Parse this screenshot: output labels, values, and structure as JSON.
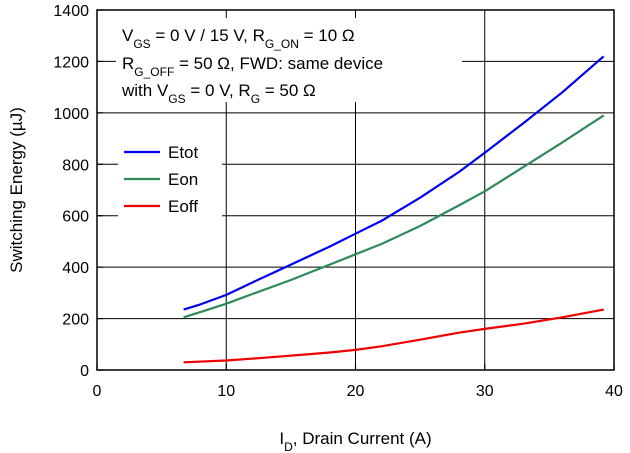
{
  "chart_data": {
    "type": "line",
    "title": "",
    "xlabel_main": "I",
    "xlabel_sub": "D",
    "xlabel_rest": ", Drain Current (A)",
    "ylabel": "Switching Energy (µJ)",
    "xlim": [
      0,
      40
    ],
    "ylim": [
      0,
      1400
    ],
    "xticks": [
      0,
      10,
      20,
      30,
      40
    ],
    "yticks": [
      0,
      200,
      400,
      600,
      800,
      1000,
      1200,
      1400
    ],
    "grid": true,
    "legend_position": "middle-left",
    "annotation": {
      "line1": [
        {
          "t": "V"
        },
        {
          "t": "GS",
          "sub": true
        },
        {
          "t": " = 0 V / 15 V, R"
        },
        {
          "t": "G_ON",
          "sub": true
        },
        {
          "t": " = 10 Ω"
        }
      ],
      "line2": [
        {
          "t": "R"
        },
        {
          "t": "G_OFF",
          "sub": true
        },
        {
          "t": " = 50 Ω, FWD: same device"
        }
      ],
      "line3": [
        {
          "t": "with V"
        },
        {
          "t": "GS",
          "sub": true
        },
        {
          "t": " = 0 V, R"
        },
        {
          "t": "G",
          "sub": true
        },
        {
          "t": " = 50 Ω"
        }
      ]
    },
    "series": [
      {
        "name": "Etot",
        "color": "#0000ee",
        "x": [
          6.7,
          8,
          10,
          12,
          15,
          18,
          20,
          22,
          25,
          28,
          30,
          33,
          36,
          39.2
        ],
        "y": [
          235,
          255,
          292,
          340,
          410,
          480,
          530,
          580,
          670,
          770,
          845,
          960,
          1080,
          1220
        ]
      },
      {
        "name": "Eon",
        "color": "#2e8b57",
        "x": [
          6.7,
          8,
          10,
          12,
          15,
          18,
          20,
          22,
          25,
          28,
          30,
          33,
          36,
          39.2
        ],
        "y": [
          205,
          225,
          258,
          295,
          350,
          410,
          450,
          490,
          560,
          640,
          695,
          790,
          885,
          990
        ]
      },
      {
        "name": "Eoff",
        "color": "#ee0000",
        "x": [
          6.7,
          10,
          13,
          16,
          18,
          20,
          22,
          25,
          28,
          30,
          33,
          36,
          39.2
        ],
        "y": [
          30,
          37,
          48,
          60,
          68,
          78,
          92,
          118,
          145,
          160,
          180,
          205,
          235
        ]
      }
    ]
  }
}
